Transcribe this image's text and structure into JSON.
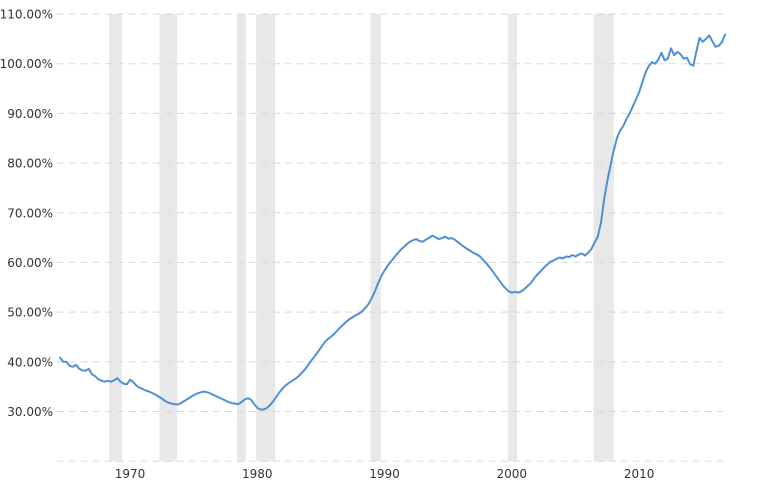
{
  "chart_data": {
    "type": "line",
    "title": "",
    "xlabel": "",
    "ylabel": "",
    "grid": "horizontal-dashed",
    "background_color": "#ffffff",
    "gridline_color": "#d9d9d9",
    "recession_band_color": "#e8e8e8",
    "text_color": "#333333",
    "x_range": [
      1965.75,
      2018.6
    ],
    "y_axis": {
      "min": 20,
      "max": 110,
      "tick_step": 10,
      "format": "percent-2-decimals"
    },
    "y_ticks": [
      {
        "value": 110,
        "label": "110.00%"
      },
      {
        "value": 100,
        "label": "100.00%"
      },
      {
        "value": 90,
        "label": "90.00%"
      },
      {
        "value": 80,
        "label": "80.00%"
      },
      {
        "value": 70,
        "label": "70.00%"
      },
      {
        "value": 60,
        "label": "60.00%"
      },
      {
        "value": 50,
        "label": "50.00%"
      },
      {
        "value": 40,
        "label": "40.00%"
      },
      {
        "value": 30,
        "label": "30.00%"
      },
      {
        "value": 20,
        "label": ""
      }
    ],
    "x_ticks": [
      {
        "year": 1970,
        "label": "1970"
      },
      {
        "year": 1980,
        "label": "1980"
      },
      {
        "year": 1990,
        "label": "1990"
      },
      {
        "year": 2000,
        "label": "2000"
      },
      {
        "year": 2010,
        "label": "2010"
      }
    ],
    "recession_bands": [
      {
        "start": 1969.85,
        "end": 1970.85
      },
      {
        "start": 1973.8,
        "end": 1975.2
      },
      {
        "start": 1979.9,
        "end": 1980.6
      },
      {
        "start": 1981.4,
        "end": 1982.9
      },
      {
        "start": 1990.4,
        "end": 1991.2
      },
      {
        "start": 2001.2,
        "end": 2001.9
      },
      {
        "start": 2007.9,
        "end": 2009.5
      }
    ],
    "series": [
      {
        "name": "debt-to-gdp-ratio",
        "color": "#4f90d5",
        "line_width": 2,
        "x_start": 1966.0,
        "x_step": 0.25,
        "unit": "%",
        "values": [
          40.8,
          40.0,
          40.0,
          39.2,
          39.0,
          39.4,
          38.6,
          38.3,
          38.2,
          38.6,
          37.5,
          37.1,
          36.5,
          36.2,
          36.0,
          36.2,
          36.0,
          36.3,
          36.7,
          36.0,
          35.6,
          35.5,
          36.4,
          35.9,
          35.2,
          34.8,
          34.5,
          34.2,
          34.0,
          33.7,
          33.4,
          33.0,
          32.6,
          32.1,
          31.8,
          31.6,
          31.5,
          31.4,
          31.7,
          32.1,
          32.5,
          32.9,
          33.3,
          33.6,
          33.8,
          34.0,
          33.9,
          33.7,
          33.4,
          33.1,
          32.8,
          32.5,
          32.2,
          31.9,
          31.7,
          31.6,
          31.5,
          31.9,
          32.4,
          32.7,
          32.4,
          31.5,
          30.7,
          30.4,
          30.4,
          30.7,
          31.3,
          32.1,
          33.0,
          33.9,
          34.7,
          35.3,
          35.8,
          36.2,
          36.6,
          37.1,
          37.8,
          38.5,
          39.4,
          40.3,
          41.1,
          42.0,
          42.9,
          43.8,
          44.5,
          45.0,
          45.5,
          46.2,
          46.9,
          47.5,
          48.1,
          48.6,
          49.0,
          49.4,
          49.7,
          50.2,
          50.9,
          51.7,
          52.9,
          54.3,
          55.9,
          57.3,
          58.4,
          59.4,
          60.2,
          61.0,
          61.8,
          62.5,
          63.1,
          63.7,
          64.2,
          64.5,
          64.7,
          64.3,
          64.2,
          64.6,
          65.0,
          65.4,
          65.1,
          64.7,
          64.9,
          65.2,
          64.8,
          64.9,
          64.6,
          64.1,
          63.6,
          63.1,
          62.7,
          62.3,
          61.9,
          61.6,
          61.2,
          60.5,
          59.8,
          59.0,
          58.2,
          57.3,
          56.4,
          55.5,
          54.8,
          54.2,
          53.9,
          54.1,
          53.9,
          54.2,
          54.7,
          55.3,
          55.9,
          56.8,
          57.6,
          58.2,
          58.9,
          59.5,
          60.1,
          60.4,
          60.7,
          61.0,
          60.8,
          61.2,
          61.1,
          61.5,
          61.2,
          61.6,
          61.8,
          61.4,
          62.0,
          62.7,
          64.0,
          65.2,
          68.0,
          72.8,
          76.5,
          79.5,
          82.5,
          85.0,
          86.5,
          87.5,
          88.8,
          90.0,
          91.4,
          92.8,
          94.3,
          96.3,
          98.2,
          99.5,
          100.3,
          100.0,
          100.8,
          102.2,
          100.7,
          101.0,
          103.1,
          101.7,
          102.4,
          101.9,
          101.0,
          101.2,
          99.9,
          99.6,
          102.5,
          105.2,
          104.4,
          105.0,
          105.7,
          104.5,
          103.4,
          103.6,
          104.3,
          105.9
        ]
      }
    ]
  }
}
